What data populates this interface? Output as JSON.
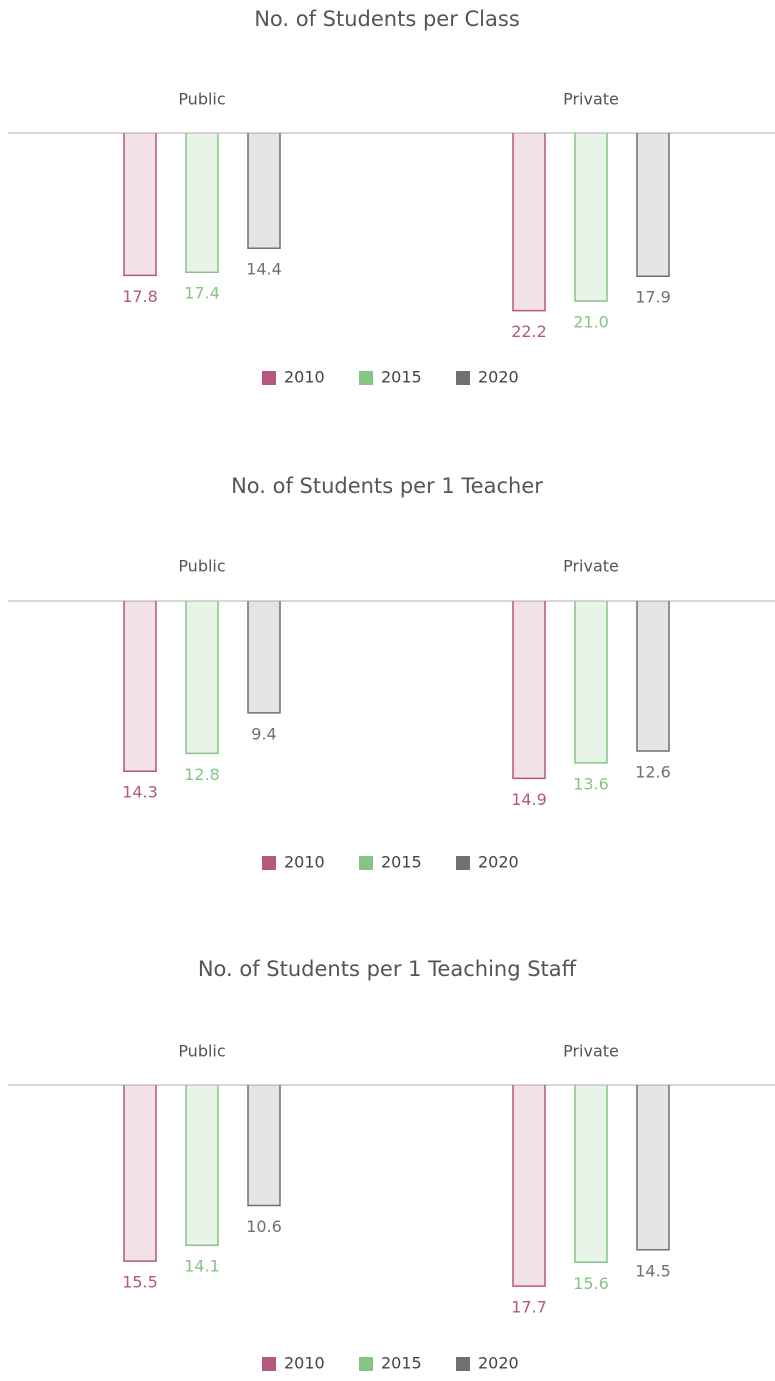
{
  "chart_data": [
    {
      "type": "bar",
      "orientation": "down",
      "title": "No. of Students per Class",
      "categories": [
        "Public",
        "Private"
      ],
      "ylim": [
        0,
        25
      ],
      "series": [
        {
          "name": "2010",
          "color": "#b5577f",
          "values": [
            17.8,
            22.2
          ],
          "value_labels": [
            "17.8",
            "22.2"
          ]
        },
        {
          "name": "2015",
          "color": "#86c486",
          "values": [
            17.4,
            21.0
          ],
          "value_labels": [
            "17.4",
            "21.0"
          ]
        },
        {
          "name": "2020",
          "color": "#707070",
          "values": [
            14.4,
            17.9
          ],
          "value_labels": [
            "14.4",
            "17.9"
          ]
        }
      ]
    },
    {
      "type": "bar",
      "orientation": "down",
      "title": "No. of Students per 1 Teacher",
      "categories": [
        "Public",
        "Private"
      ],
      "ylim": [
        0,
        16.8
      ],
      "series": [
        {
          "name": "2010",
          "color": "#b5577f",
          "values": [
            14.3,
            14.9
          ],
          "value_labels": [
            "14.3",
            "14.9"
          ]
        },
        {
          "name": "2015",
          "color": "#86c486",
          "values": [
            12.8,
            13.6
          ],
          "value_labels": [
            "12.8",
            "13.6"
          ]
        },
        {
          "name": "2020",
          "color": "#707070",
          "values": [
            9.4,
            12.6
          ],
          "value_labels": [
            "9.4",
            "12.6"
          ]
        }
      ]
    },
    {
      "type": "bar",
      "orientation": "down",
      "title": "No. of Students per 1 Teaching Staff",
      "categories": [
        "Public",
        "Private"
      ],
      "ylim": [
        0,
        17.6
      ],
      "series": [
        {
          "name": "2010",
          "color": "#b5577f",
          "values": [
            15.5,
            17.7
          ],
          "value_labels": [
            "15.5",
            "17.7"
          ]
        },
        {
          "name": "2015",
          "color": "#86c486",
          "values": [
            14.1,
            15.6
          ],
          "value_labels": [
            "14.1",
            "15.6"
          ]
        },
        {
          "name": "2020",
          "color": "#707070",
          "values": [
            10.6,
            14.5
          ],
          "value_labels": [
            "10.6",
            "14.5"
          ]
        }
      ]
    }
  ]
}
